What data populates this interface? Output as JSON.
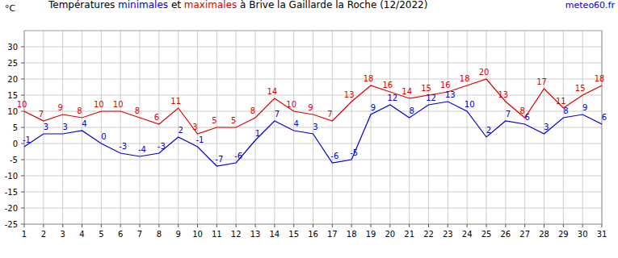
{
  "chart_data": {
    "type": "line",
    "title": "Températures minimales et maximales à Brive la Gaillarde la Roche (12/2022)",
    "y_label": "°C",
    "annotations": [
      "meteo60.fr"
    ],
    "x": [
      1,
      2,
      3,
      4,
      5,
      6,
      7,
      8,
      9,
      10,
      11,
      12,
      13,
      14,
      15,
      16,
      17,
      18,
      19,
      20,
      21,
      22,
      23,
      24,
      25,
      26,
      27,
      28,
      29,
      30,
      31
    ],
    "xlim": [
      1,
      31
    ],
    "xticks": [
      1,
      2,
      3,
      4,
      5,
      6,
      7,
      8,
      9,
      10,
      11,
      12,
      13,
      14,
      15,
      16,
      17,
      18,
      19,
      20,
      21,
      22,
      23,
      24,
      25,
      26,
      27,
      28,
      29,
      30,
      31
    ],
    "ylim": [
      -25,
      35
    ],
    "yticks": [
      -25,
      -20,
      -15,
      -10,
      -5,
      0,
      5,
      10,
      15,
      20,
      25,
      30
    ],
    "grid": true,
    "data_labels": true,
    "series": [
      {
        "name": "minimales",
        "color": "#0000cc",
        "values": [
          -1,
          3,
          3,
          4,
          0,
          -3,
          -4,
          -3,
          2,
          -1,
          -7,
          -6,
          1,
          7,
          4,
          3,
          -6,
          -5,
          9,
          12,
          8,
          12,
          13,
          10,
          2,
          7,
          6,
          3,
          8,
          9,
          6
        ]
      },
      {
        "name": "maximales",
        "color": "#dd0000",
        "values": [
          10,
          7,
          9,
          8,
          10,
          10,
          8,
          6,
          11,
          3,
          5,
          5,
          8,
          14,
          10,
          9,
          7,
          13,
          18,
          16,
          14,
          15,
          16,
          18,
          20,
          13,
          8,
          17,
          11,
          15,
          18
        ]
      }
    ]
  }
}
